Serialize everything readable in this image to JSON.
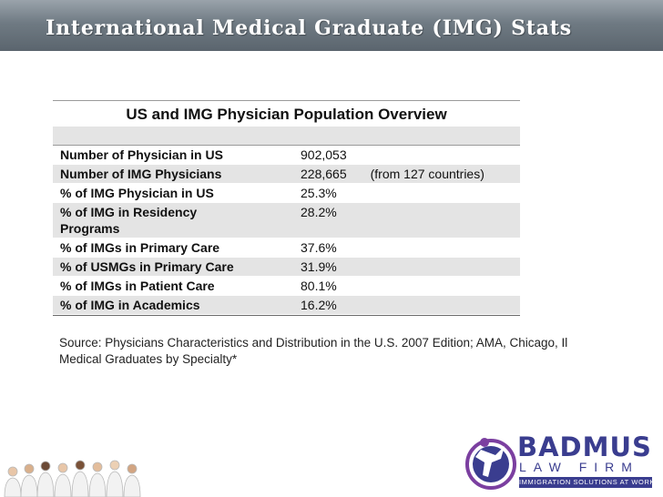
{
  "header": {
    "title": "International Medical Graduate (IMG) Stats"
  },
  "table": {
    "title": "US and IMG Physician Population Overview",
    "rows": [
      {
        "label": "Number of Physician in US",
        "value": "902,053",
        "note": ""
      },
      {
        "label": "Number of IMG Physicians",
        "value": "228,665",
        "note": "(from 127 countries)"
      },
      {
        "label": "% of IMG Physician in US",
        "value": "25.3%",
        "note": ""
      },
      {
        "label": "% of IMG in Residency Programs",
        "value": "28.2%",
        "note": ""
      },
      {
        "label": "% of IMGs in Primary Care",
        "value": "37.6%",
        "note": ""
      },
      {
        "label": "% of USMGs in Primary Care",
        "value": "31.9%",
        "note": ""
      },
      {
        "label": "% of IMGs in Patient Care",
        "value": "80.1%",
        "note": ""
      },
      {
        "label": "% of IMG in Academics",
        "value": "16.2%",
        "note": ""
      }
    ]
  },
  "source": {
    "line1": "Source: Physicians Characteristics and Distribution in the U.S. 2007 Edition; AMA, Chicago, Il",
    "line2": "Medical Graduates by Specialty*"
  },
  "logo": {
    "name": "BADMUS",
    "sub": "LAW FIRM",
    "tagline": "IMMIGRATION SOLUTIONS AT WORK"
  },
  "colors": {
    "banner": "#6f7a83",
    "brand": "#3a3d8f",
    "brand_accent": "#7b3fa0",
    "row_shade": "#e4e4e4"
  }
}
